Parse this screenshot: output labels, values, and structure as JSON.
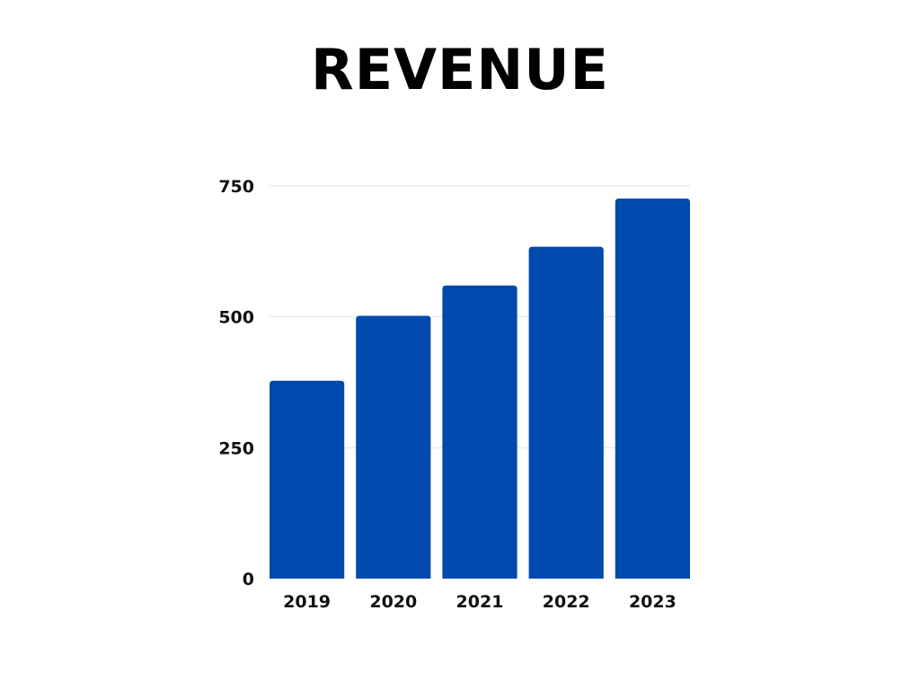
{
  "chart_data": {
    "type": "bar",
    "title": "REVENUE",
    "xlabel": "",
    "ylabel": "",
    "categories": [
      "2019",
      "2020",
      "2021",
      "2022",
      "2023"
    ],
    "values": [
      378,
      502,
      560,
      634,
      726
    ],
    "ylim": [
      0,
      750
    ],
    "yticks": [
      0,
      250,
      500,
      750
    ],
    "grid": true,
    "legend": "none",
    "colors": {
      "bar": "#004AAD",
      "grid": "#e2e2e2",
      "text": "#111111"
    }
  }
}
